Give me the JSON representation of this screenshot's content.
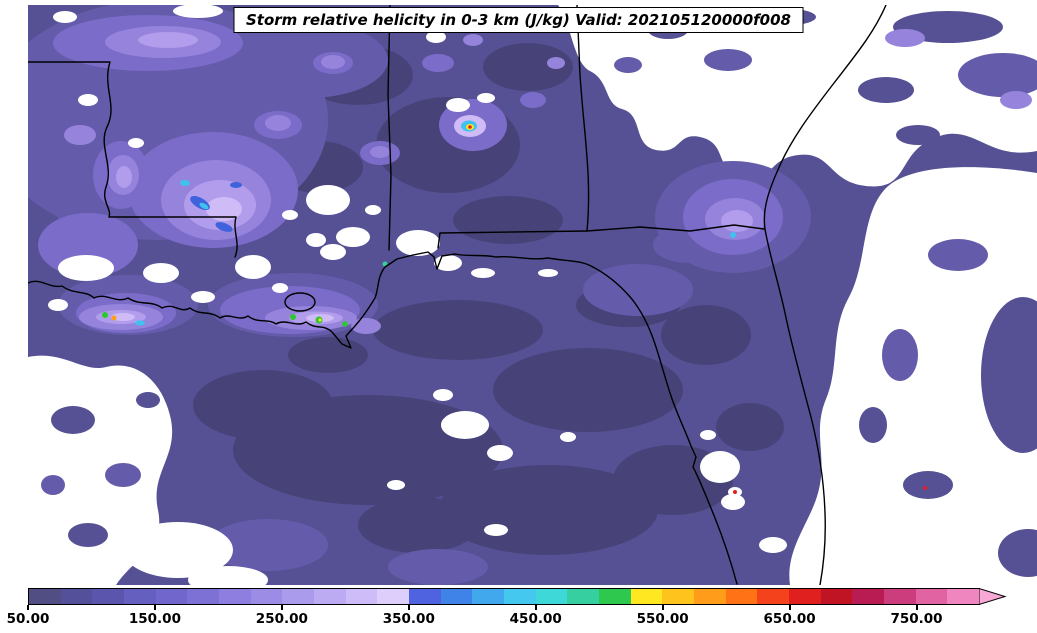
{
  "title": {
    "text": "Storm relative helicity in 0-3 km (J/kg) Valid: 202105120000f008"
  },
  "chart_data": {
    "type": "heatmap",
    "variant": "filled-contour-weather-map",
    "variable": "Storm relative helicity in 0-3 km",
    "units": "J/kg",
    "valid_stamp": "202105120000f008",
    "region": "Southeastern United States and Gulf of Mexico (Louisiana, Mississippi, Alabama, Georgia, Florida)",
    "colorbar": {
      "min": 50,
      "max": 800,
      "step": 25,
      "colors": [
        "#514e83",
        "#55509a",
        "#5b55ae",
        "#6560c0",
        "#7166cc",
        "#7e71d6",
        "#8d7edf",
        "#9c8ce6",
        "#ab9bec",
        "#bcabf2",
        "#cdbcf7",
        "#ddcefb",
        "#4f63e0",
        "#3f82e8",
        "#41a8ee",
        "#45c8f0",
        "#3fd8d8",
        "#35cfa0",
        "#2ec84e",
        "#ffe822",
        "#ffc31e",
        "#ff9c1a",
        "#ff7316",
        "#f4431c",
        "#e01f1f",
        "#c01425",
        "#b81c52",
        "#cc3d7e",
        "#e163a2",
        "#ef86bf"
      ],
      "overflow_color": "#f8a8d4",
      "ticks": [
        {
          "value": 50,
          "label": "50.00"
        },
        {
          "value": 150,
          "label": "150.00"
        },
        {
          "value": 250,
          "label": "250.00"
        },
        {
          "value": 350,
          "label": "350.00"
        },
        {
          "value": 450,
          "label": "450.00"
        },
        {
          "value": 550,
          "label": "550.00"
        },
        {
          "value": 650,
          "label": "650.00"
        },
        {
          "value": 750,
          "label": "750.00"
        }
      ]
    },
    "notable_features": [
      "Broad 50-250 J/kg (dark purple) field over the Gulf of Mexico and most inland areas",
      "Enhanced 250-450 J/kg (violet/blue/cyan) pocket over northwest Louisiana and southwest Arkansas",
      "Isolated bullseye exceeding 550 J/kg (yellow/orange/red core ringed by cyan) over northern Alabama",
      "Narrow enhanced band along the Louisiana coast with small green/orange cores above 450 J/kg",
      "Local violet maximum (250-400 J/kg) over east-central Georgia",
      "Values below 50 J/kg (white) over Georgia/Carolinas, the Atlantic east of Florida, and patches of the western Gulf"
    ]
  }
}
